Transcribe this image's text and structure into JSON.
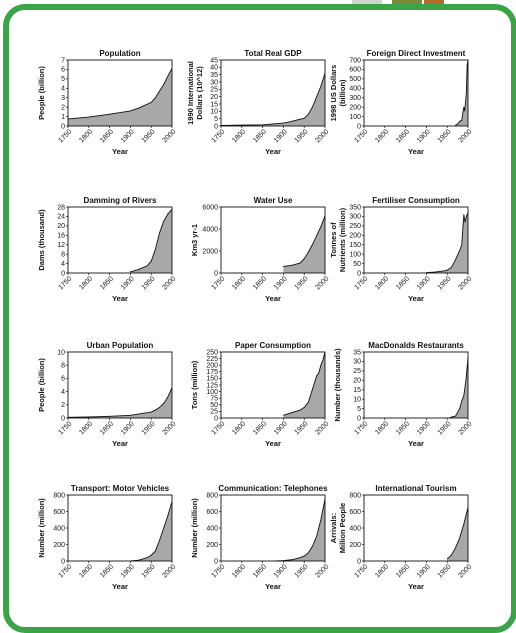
{
  "colors": {
    "frame": "#3aa447",
    "area_fill": "#a8a8a8",
    "line": "#111111"
  },
  "chart_data": [
    {
      "type": "area",
      "title": "Population",
      "xlabel": "Year",
      "ylabel": "People (billion)",
      "xlim": [
        1750,
        2000
      ],
      "ylim": [
        0,
        7
      ],
      "yticks": [
        0,
        1,
        2,
        3,
        4,
        5,
        6,
        7
      ],
      "xticks": [
        1750,
        1800,
        1850,
        1900,
        1950,
        2000
      ],
      "x": [
        1750,
        1800,
        1850,
        1900,
        1920,
        1950,
        1960,
        1970,
        1980,
        1990,
        2000
      ],
      "values": [
        0.75,
        0.95,
        1.25,
        1.6,
        1.9,
        2.5,
        3.0,
        3.7,
        4.4,
        5.3,
        6.1
      ]
    },
    {
      "type": "area",
      "title": "Total Real GDP",
      "xlabel": "Year",
      "ylabel": "1990 International Dollars (10^12)",
      "xlim": [
        1750,
        2000
      ],
      "ylim": [
        0,
        45
      ],
      "yticks": [
        0,
        5,
        10,
        15,
        20,
        25,
        30,
        35,
        40,
        45
      ],
      "xticks": [
        1750,
        1800,
        1850,
        1900,
        1950,
        2000
      ],
      "x": [
        1750,
        1800,
        1850,
        1900,
        1913,
        1950,
        1960,
        1970,
        1980,
        1990,
        2000
      ],
      "values": [
        0.4,
        0.6,
        0.8,
        2,
        2.7,
        5.3,
        8,
        13,
        20,
        27,
        36
      ]
    },
    {
      "type": "area",
      "title": "Foreign Direct Investment",
      "xlabel": "Year",
      "ylabel": "1998 US Dollars (billion)",
      "xlim": [
        1750,
        2000
      ],
      "ylim": [
        0,
        700
      ],
      "yticks": [
        0,
        100,
        200,
        300,
        400,
        500,
        600,
        700
      ],
      "xticks": [
        1750,
        1800,
        1850,
        1900,
        1950,
        2000
      ],
      "x": [
        1970,
        1975,
        1980,
        1985,
        1988,
        1990,
        1992,
        1994,
        1996,
        1998,
        2000
      ],
      "values": [
        10,
        20,
        50,
        60,
        150,
        200,
        160,
        250,
        350,
        650,
        700
      ]
    },
    {
      "type": "area",
      "title": "Damming of Rivers",
      "xlabel": "Year",
      "ylabel": "Dams (thousand)",
      "xlim": [
        1750,
        2000
      ],
      "ylim": [
        0,
        28
      ],
      "yticks": [
        0,
        4,
        8,
        12,
        16,
        20,
        24,
        28
      ],
      "xticks": [
        1750,
        1800,
        1850,
        1900,
        1950,
        2000
      ],
      "x": [
        1900,
        1920,
        1940,
        1950,
        1960,
        1970,
        1980,
        1990,
        2000
      ],
      "values": [
        0.5,
        1.5,
        3,
        5,
        10,
        17,
        22,
        25,
        27
      ]
    },
    {
      "type": "area",
      "title": "Water Use",
      "xlabel": "Year",
      "ylabel": "Km3 yr-1",
      "xlim": [
        1750,
        2000
      ],
      "ylim": [
        0,
        6000
      ],
      "yticks": [
        0,
        2000,
        4000,
        6000
      ],
      "xticks": [
        1750,
        1800,
        1850,
        1900,
        1950,
        2000
      ],
      "x": [
        1900,
        1920,
        1940,
        1950,
        1960,
        1970,
        1980,
        1990,
        2000
      ],
      "values": [
        600,
        700,
        900,
        1300,
        1900,
        2600,
        3400,
        4200,
        5200
      ]
    },
    {
      "type": "area",
      "title": "Fertiliser Consumption",
      "xlabel": "Year",
      "ylabel": "Tonnes of Nutrients (million)",
      "xlim": [
        1750,
        2000
      ],
      "ylim": [
        0,
        350
      ],
      "yticks": [
        0,
        50,
        100,
        150,
        200,
        250,
        300,
        350
      ],
      "xticks": [
        1750,
        1800,
        1850,
        1900,
        1950,
        2000
      ],
      "x": [
        1900,
        1920,
        1940,
        1950,
        1960,
        1970,
        1980,
        1985,
        1988,
        1990,
        1993,
        1996,
        2000
      ],
      "values": [
        2,
        5,
        10,
        15,
        30,
        70,
        120,
        150,
        250,
        310,
        270,
        300,
        320
      ]
    },
    {
      "type": "area",
      "title": "Urban Population",
      "xlabel": "Year",
      "ylabel": "People (billion)",
      "xlim": [
        1750,
        2000
      ],
      "ylim": [
        0,
        10
      ],
      "yticks": [
        0,
        2,
        4,
        6,
        8,
        10
      ],
      "xticks": [
        1750,
        1800,
        1850,
        1900,
        1950,
        2000
      ],
      "x": [
        1750,
        1800,
        1850,
        1900,
        1950,
        1960,
        1970,
        1980,
        1990,
        2000
      ],
      "values": [
        0.1,
        0.15,
        0.25,
        0.4,
        0.9,
        1.2,
        1.6,
        2.2,
        3.2,
        4.6
      ]
    },
    {
      "type": "area",
      "title": "Paper Consumption",
      "xlabel": "Year",
      "ylabel": "Tons (million)",
      "xlim": [
        1750,
        2000
      ],
      "ylim": [
        0,
        250
      ],
      "yticks": [
        0,
        25,
        50,
        75,
        100,
        125,
        150,
        175,
        200,
        225,
        250
      ],
      "xticks": [
        1750,
        1800,
        1850,
        1900,
        1950,
        2000
      ],
      "x": [
        1900,
        1920,
        1940,
        1950,
        1960,
        1970,
        1980,
        1985,
        1990,
        1995,
        2000
      ],
      "values": [
        10,
        20,
        30,
        40,
        60,
        110,
        160,
        170,
        200,
        220,
        250
      ]
    },
    {
      "type": "area",
      "title": "MacDonalds Restaurants",
      "xlabel": "Year",
      "ylabel": "Number (thousands)",
      "xlim": [
        1750,
        2000
      ],
      "ylim": [
        0,
        35
      ],
      "yticks": [
        0,
        5,
        10,
        15,
        20,
        25,
        30,
        35
      ],
      "xticks": [
        1750,
        1800,
        1850,
        1900,
        1950,
        2000
      ],
      "x": [
        1955,
        1960,
        1970,
        1980,
        1985,
        1990,
        1995,
        2000
      ],
      "values": [
        0,
        0.5,
        1,
        5,
        9,
        12,
        20,
        32
      ]
    },
    {
      "type": "area",
      "title": "Transport: Motor Vehicles",
      "xlabel": "Year",
      "ylabel": "Number (million)",
      "xlim": [
        1750,
        2000
      ],
      "ylim": [
        0,
        800
      ],
      "yticks": [
        0,
        200,
        400,
        600,
        800
      ],
      "xticks": [
        1750,
        1800,
        1850,
        1900,
        1950,
        2000
      ],
      "x": [
        1900,
        1920,
        1940,
        1950,
        1960,
        1970,
        1980,
        1990,
        2000
      ],
      "values": [
        0,
        10,
        40,
        70,
        120,
        250,
        400,
        550,
        720
      ]
    },
    {
      "type": "area",
      "title": "Communication: Telephones",
      "xlabel": "Year",
      "ylabel": "Number (million)",
      "xlim": [
        1750,
        2000
      ],
      "ylim": [
        0,
        800
      ],
      "yticks": [
        0,
        200,
        400,
        600,
        800
      ],
      "xticks": [
        1750,
        1800,
        1850,
        1900,
        1950,
        2000
      ],
      "x": [
        1880,
        1900,
        1920,
        1940,
        1950,
        1960,
        1970,
        1980,
        1990,
        2000
      ],
      "values": [
        0,
        5,
        15,
        40,
        60,
        100,
        180,
        300,
        500,
        750
      ]
    },
    {
      "type": "area",
      "title": "International Tourism",
      "xlabel": "Year",
      "ylabel": "Arrivals: Million People",
      "xlim": [
        1750,
        2000
      ],
      "ylim": [
        0,
        800
      ],
      "yticks": [
        0,
        200,
        400,
        600,
        800
      ],
      "xticks": [
        1750,
        1800,
        1850,
        1900,
        1950,
        2000
      ],
      "x": [
        1950,
        1960,
        1970,
        1980,
        1990,
        2000
      ],
      "values": [
        25,
        70,
        160,
        280,
        450,
        650
      ]
    }
  ]
}
